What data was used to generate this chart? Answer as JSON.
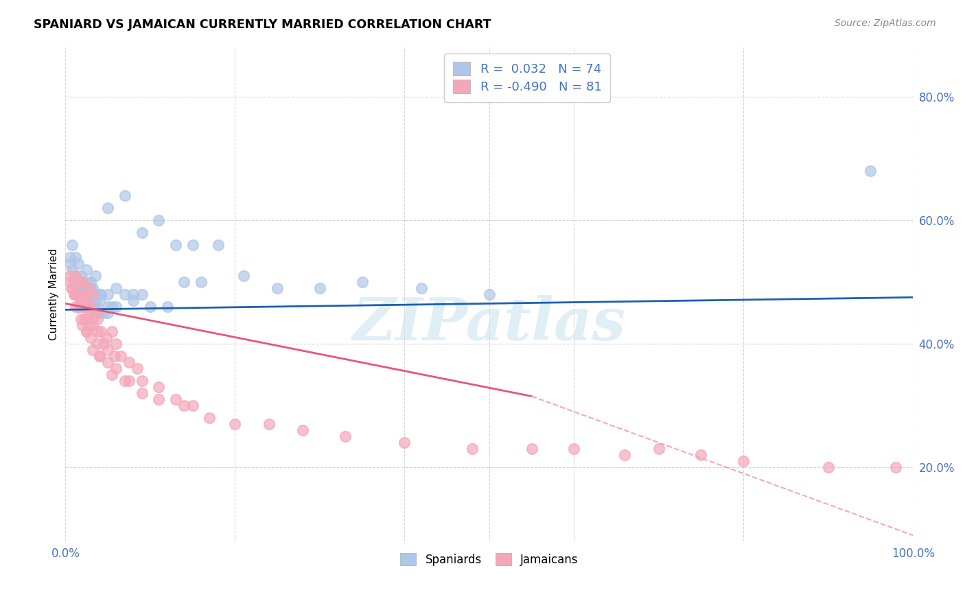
{
  "title": "SPANIARD VS JAMAICAN CURRENTLY MARRIED CORRELATION CHART",
  "source": "Source: ZipAtlas.com",
  "ylabel": "Currently Married",
  "yticks": [
    0.2,
    0.4,
    0.6,
    0.8
  ],
  "ytick_labels": [
    "20.0%",
    "40.0%",
    "60.0%",
    "80.0%"
  ],
  "xmin": 0.0,
  "xmax": 1.0,
  "ymin": 0.08,
  "ymax": 0.88,
  "spaniard_color": "#aec6e8",
  "jamaican_color": "#f4a7b9",
  "spaniard_line_color": "#1a5fb4",
  "jamaican_line_color": "#e8547a",
  "jamaican_dashed_color": "#f4a7b9",
  "watermark": "ZIPatlas",
  "spaniard_line_start_y": 0.455,
  "spaniard_line_end_y": 0.475,
  "jamaican_line_start_y": 0.465,
  "jamaican_line_solid_end_x": 0.55,
  "jamaican_line_solid_end_y": 0.315,
  "jamaican_line_end_y": 0.09,
  "spaniard_x": [
    0.005,
    0.008,
    0.01,
    0.012,
    0.015,
    0.018,
    0.02,
    0.022,
    0.025,
    0.028,
    0.005,
    0.008,
    0.012,
    0.015,
    0.018,
    0.02,
    0.025,
    0.03,
    0.032,
    0.035,
    0.01,
    0.015,
    0.02,
    0.022,
    0.025,
    0.028,
    0.032,
    0.038,
    0.04,
    0.042,
    0.015,
    0.018,
    0.022,
    0.025,
    0.03,
    0.035,
    0.04,
    0.045,
    0.05,
    0.055,
    0.02,
    0.025,
    0.03,
    0.035,
    0.04,
    0.05,
    0.06,
    0.07,
    0.08,
    0.09,
    0.025,
    0.03,
    0.04,
    0.05,
    0.06,
    0.08,
    0.1,
    0.12,
    0.14,
    0.16,
    0.05,
    0.07,
    0.09,
    0.11,
    0.13,
    0.15,
    0.18,
    0.21,
    0.25,
    0.3,
    0.35,
    0.42,
    0.5,
    0.95
  ],
  "spaniard_y": [
    0.53,
    0.52,
    0.5,
    0.51,
    0.49,
    0.48,
    0.5,
    0.47,
    0.52,
    0.49,
    0.54,
    0.56,
    0.54,
    0.53,
    0.51,
    0.5,
    0.48,
    0.5,
    0.49,
    0.51,
    0.5,
    0.49,
    0.49,
    0.48,
    0.47,
    0.48,
    0.46,
    0.48,
    0.47,
    0.48,
    0.49,
    0.46,
    0.47,
    0.46,
    0.46,
    0.47,
    0.45,
    0.45,
    0.45,
    0.46,
    0.49,
    0.48,
    0.47,
    0.46,
    0.48,
    0.46,
    0.46,
    0.48,
    0.47,
    0.48,
    0.5,
    0.49,
    0.48,
    0.48,
    0.49,
    0.48,
    0.46,
    0.46,
    0.5,
    0.5,
    0.62,
    0.64,
    0.58,
    0.6,
    0.56,
    0.56,
    0.56,
    0.51,
    0.49,
    0.49,
    0.5,
    0.49,
    0.48,
    0.68
  ],
  "jamaican_x": [
    0.005,
    0.007,
    0.01,
    0.012,
    0.015,
    0.018,
    0.02,
    0.022,
    0.025,
    0.028,
    0.005,
    0.008,
    0.012,
    0.015,
    0.018,
    0.02,
    0.022,
    0.025,
    0.03,
    0.032,
    0.01,
    0.012,
    0.015,
    0.018,
    0.02,
    0.025,
    0.028,
    0.032,
    0.035,
    0.038,
    0.015,
    0.018,
    0.022,
    0.028,
    0.032,
    0.038,
    0.042,
    0.048,
    0.055,
    0.06,
    0.02,
    0.025,
    0.03,
    0.038,
    0.045,
    0.05,
    0.058,
    0.065,
    0.075,
    0.085,
    0.025,
    0.032,
    0.04,
    0.05,
    0.06,
    0.075,
    0.09,
    0.11,
    0.13,
    0.15,
    0.04,
    0.055,
    0.07,
    0.09,
    0.11,
    0.14,
    0.17,
    0.2,
    0.24,
    0.28,
    0.33,
    0.4,
    0.48,
    0.55,
    0.6,
    0.66,
    0.7,
    0.75,
    0.8,
    0.9,
    0.98
  ],
  "jamaican_y": [
    0.5,
    0.49,
    0.48,
    0.51,
    0.48,
    0.47,
    0.5,
    0.48,
    0.46,
    0.49,
    0.51,
    0.49,
    0.48,
    0.5,
    0.48,
    0.5,
    0.48,
    0.47,
    0.46,
    0.48,
    0.48,
    0.46,
    0.46,
    0.47,
    0.46,
    0.44,
    0.45,
    0.44,
    0.45,
    0.44,
    0.46,
    0.44,
    0.44,
    0.43,
    0.43,
    0.42,
    0.42,
    0.41,
    0.42,
    0.4,
    0.43,
    0.42,
    0.41,
    0.4,
    0.4,
    0.39,
    0.38,
    0.38,
    0.37,
    0.36,
    0.42,
    0.39,
    0.38,
    0.37,
    0.36,
    0.34,
    0.34,
    0.33,
    0.31,
    0.3,
    0.38,
    0.35,
    0.34,
    0.32,
    0.31,
    0.3,
    0.28,
    0.27,
    0.27,
    0.26,
    0.25,
    0.24,
    0.23,
    0.23,
    0.23,
    0.22,
    0.23,
    0.22,
    0.21,
    0.2,
    0.2
  ]
}
